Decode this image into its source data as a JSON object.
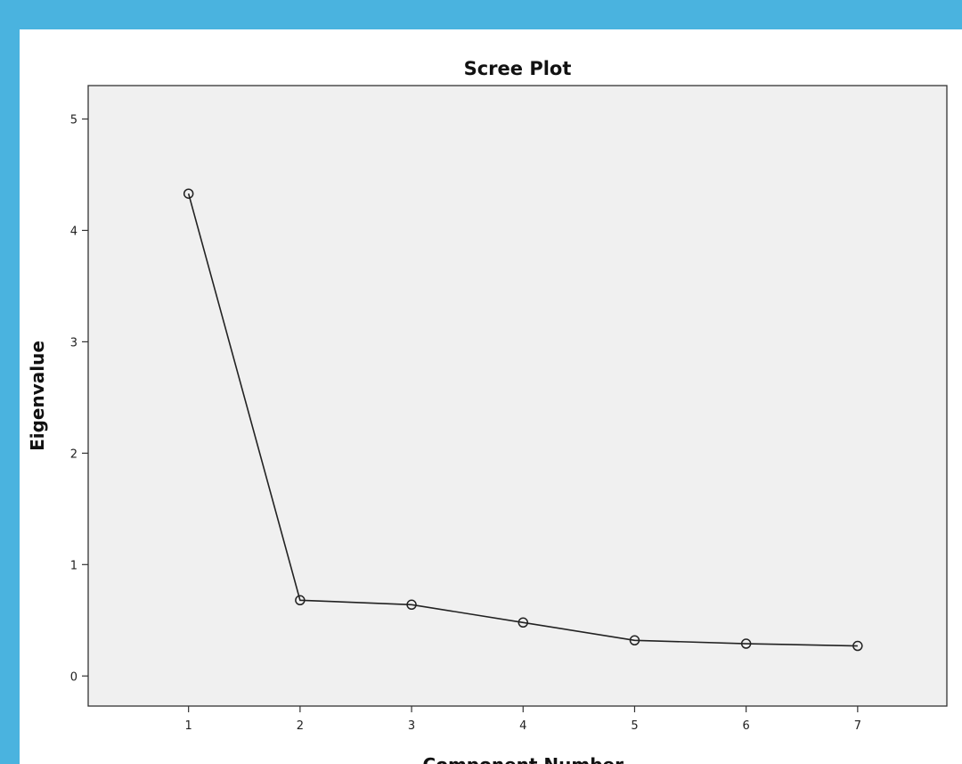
{
  "chart_data": {
    "type": "line",
    "title": "Scree Plot",
    "xlabel": "Component Number",
    "ylabel": "Eigenvalue",
    "x": [
      1,
      2,
      3,
      4,
      5,
      6,
      7
    ],
    "series": [
      {
        "values": [
          4.33,
          0.68,
          0.64,
          0.48,
          0.32,
          0.29,
          0.27
        ]
      }
    ],
    "xticks": [
      "1",
      "2",
      "3",
      "4",
      "5",
      "6",
      "7"
    ],
    "yticks": [
      "0",
      "1",
      "2",
      "3",
      "4",
      "5"
    ],
    "ylim": [
      -0.27,
      5.3
    ],
    "xlim": [
      0.1,
      7.8
    ],
    "grid": false,
    "legend": "none",
    "colors": {
      "page_background": "#4ab3df",
      "panel_background": "#ffffff",
      "plot_background": "#f0f0f0",
      "line": "#222222",
      "marker": "#222222"
    },
    "marker": "open-circle"
  }
}
